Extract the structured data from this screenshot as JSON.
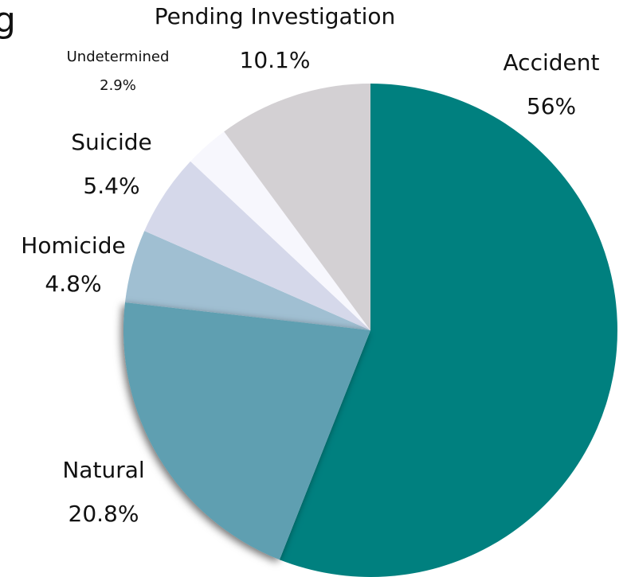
{
  "chart_data": {
    "type": "pie",
    "title": "g",
    "categories": [
      "Accident",
      "Natural",
      "Homicide",
      "Suicide",
      "Undetermined",
      "Pending Investigation"
    ],
    "values": [
      56,
      20.8,
      4.8,
      5.4,
      2.9,
      10.1
    ],
    "value_labels": [
      "56%",
      "20.8%",
      "4.8%",
      "5.4%",
      "2.9%",
      "10.1%"
    ],
    "colors": [
      "#00807f",
      "#5f9fb1",
      "#a0bfd2",
      "#d5d8ea",
      "#f7f7fd",
      "#d3d0d3"
    ]
  }
}
